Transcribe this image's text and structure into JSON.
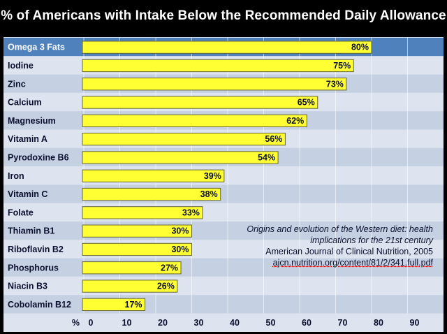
{
  "chart_data": {
    "type": "bar",
    "orientation": "horizontal",
    "title": "% of Americans with Intake Below the Recommended Daily Allowance",
    "xlabel": "%",
    "xlim": [
      0,
      100
    ],
    "xticks": [
      0,
      10,
      20,
      30,
      40,
      50,
      60,
      70,
      80,
      90
    ],
    "categories": [
      "Omega 3 Fats",
      "Iodine",
      "Zinc",
      "Calcium",
      "Magnesium",
      "Vitamin A",
      "Pyrodoxine B6",
      "Iron",
      "Vitamin C",
      "Folate",
      "Thiamin B1",
      "Riboflavin B2",
      "Phosphorus",
      "Niacin B3",
      "Cobolamin B12"
    ],
    "values": [
      80,
      75,
      73,
      65,
      62,
      56,
      54,
      39,
      38,
      33,
      30,
      30,
      27,
      26,
      17
    ],
    "value_labels": [
      "80%",
      "75%",
      "73%",
      "65%",
      "62%",
      "56%",
      "54%",
      "39%",
      "38%",
      "33%",
      "30%",
      "30%",
      "27%",
      "26%",
      "17%"
    ],
    "colors": {
      "bar_fill": "#ffff33",
      "bar_stroke": "#666633",
      "row_light": "#dde4ef",
      "row_dark": "#c5d0e2",
      "header_row": "#4f81bd"
    }
  },
  "citation": {
    "title_line1": "Origins and evolution of the Western diet: health",
    "title_line2": "implications for the 21st century",
    "journal": "American Journal of Clinical Nutrition, 2005",
    "url": "ajcn.nutrition.org/content/81/2/341.full.pdf"
  }
}
